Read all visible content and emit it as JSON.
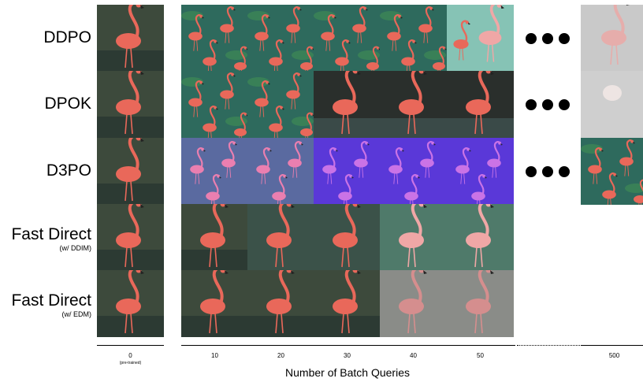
{
  "rows": [
    {
      "label": "DDPO",
      "sub": ""
    },
    {
      "label": "DPOK",
      "sub": ""
    },
    {
      "label": "D3PO",
      "sub": ""
    },
    {
      "label": "Fast Direct",
      "sub": "(w/ DDIM)"
    },
    {
      "label": "Fast Direct",
      "sub": "(w/ EDM)"
    }
  ],
  "x_axis": {
    "title": "Number of Batch Queries",
    "ticks": [
      "0",
      "10",
      "20",
      "30",
      "40",
      "50",
      "500"
    ],
    "tick0_note": "(pre-trained)"
  },
  "grid": [
    [
      "natural",
      "pattern",
      "pattern",
      "pattern",
      "pattern",
      "teal",
      "sketch"
    ],
    [
      "natural",
      "pattern",
      "pattern",
      "dark",
      "dark",
      "dark",
      "blob"
    ],
    [
      "natural",
      "pink",
      "pink",
      "purple",
      "purple",
      "purple",
      "pattern"
    ],
    [
      "natural",
      "natural",
      "muted",
      "muted",
      "mint",
      "mint",
      "empty"
    ],
    [
      "natural",
      "natural",
      "natural",
      "natural",
      "grey",
      "grey",
      "empty"
    ]
  ],
  "ellipsis_rows": [
    0,
    1,
    2
  ],
  "colors": {
    "natural_bg": "#3d4a3c",
    "pattern_bg": "#2e6a5d",
    "teal_bg": "#86c3b5",
    "dark_bg": "#2a2f2c",
    "pink_bg": "#5a6aa0",
    "purple_bg": "#5a38d8",
    "muted_bg": "#3b5249",
    "mint_bg": "#4f7a6a",
    "grey_bg": "#8a8c88",
    "sketch_bg": "#c9c9c9",
    "blob_bg": "#cfcfcf",
    "flamingo": "#e9685a",
    "flamingo_light": "#f0a7a6"
  }
}
